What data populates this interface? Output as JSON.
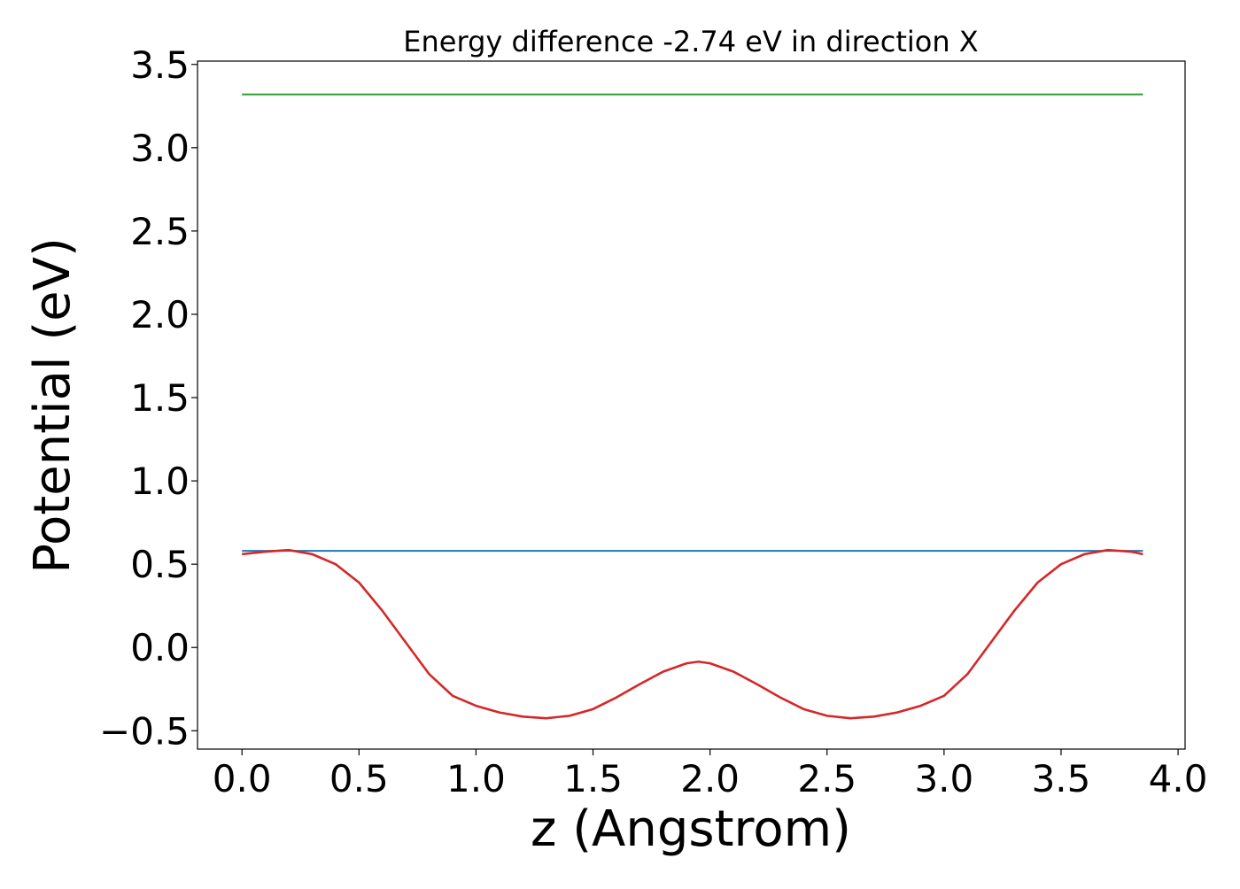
{
  "chart_data": {
    "type": "line",
    "title": "Energy difference -2.74 eV in direction X",
    "xlabel": "z (Angstrom)",
    "ylabel": "Potential (eV)",
    "xlim": [
      -0.19,
      4.03
    ],
    "ylim": [
      -0.61,
      3.52
    ],
    "xticks": [
      0.0,
      0.5,
      1.0,
      1.5,
      2.0,
      2.5,
      3.0,
      3.5,
      4.0
    ],
    "xtick_labels": [
      "0.0",
      "0.5",
      "1.0",
      "1.5",
      "2.0",
      "2.5",
      "3.0",
      "3.5",
      "4.0"
    ],
    "yticks": [
      -0.5,
      0.0,
      0.5,
      1.0,
      1.5,
      2.0,
      2.5,
      3.0,
      3.5
    ],
    "ytick_labels": [
      "−0.5",
      "0.0",
      "0.5",
      "1.0",
      "1.5",
      "2.0",
      "2.5",
      "3.0",
      "3.5"
    ],
    "grid": false,
    "legend": "none",
    "series": [
      {
        "color": "#2ca02c",
        "x": [
          0.0,
          3.85
        ],
        "y": [
          3.32,
          3.32
        ]
      },
      {
        "color": "#1f77b4",
        "x": [
          0.0,
          3.85
        ],
        "y": [
          0.58,
          0.58
        ]
      },
      {
        "color": "#d62728",
        "x": [
          0.0,
          0.1,
          0.2,
          0.3,
          0.4,
          0.5,
          0.6,
          0.7,
          0.8,
          0.9,
          1.0,
          1.1,
          1.2,
          1.3,
          1.4,
          1.5,
          1.6,
          1.7,
          1.8,
          1.9,
          1.95,
          2.0,
          2.1,
          2.2,
          2.3,
          2.4,
          2.5,
          2.6,
          2.7,
          2.8,
          2.9,
          3.0,
          3.1,
          3.2,
          3.3,
          3.4,
          3.5,
          3.6,
          3.7,
          3.8,
          3.85
        ],
        "y": [
          0.56,
          0.575,
          0.585,
          0.56,
          0.5,
          0.39,
          0.22,
          0.03,
          -0.16,
          -0.29,
          -0.35,
          -0.39,
          -0.415,
          -0.425,
          -0.41,
          -0.37,
          -0.3,
          -0.22,
          -0.145,
          -0.095,
          -0.085,
          -0.095,
          -0.145,
          -0.22,
          -0.3,
          -0.37,
          -0.41,
          -0.425,
          -0.415,
          -0.39,
          -0.35,
          -0.29,
          -0.16,
          0.03,
          0.22,
          0.39,
          0.5,
          0.56,
          0.585,
          0.575,
          0.56
        ]
      }
    ]
  }
}
